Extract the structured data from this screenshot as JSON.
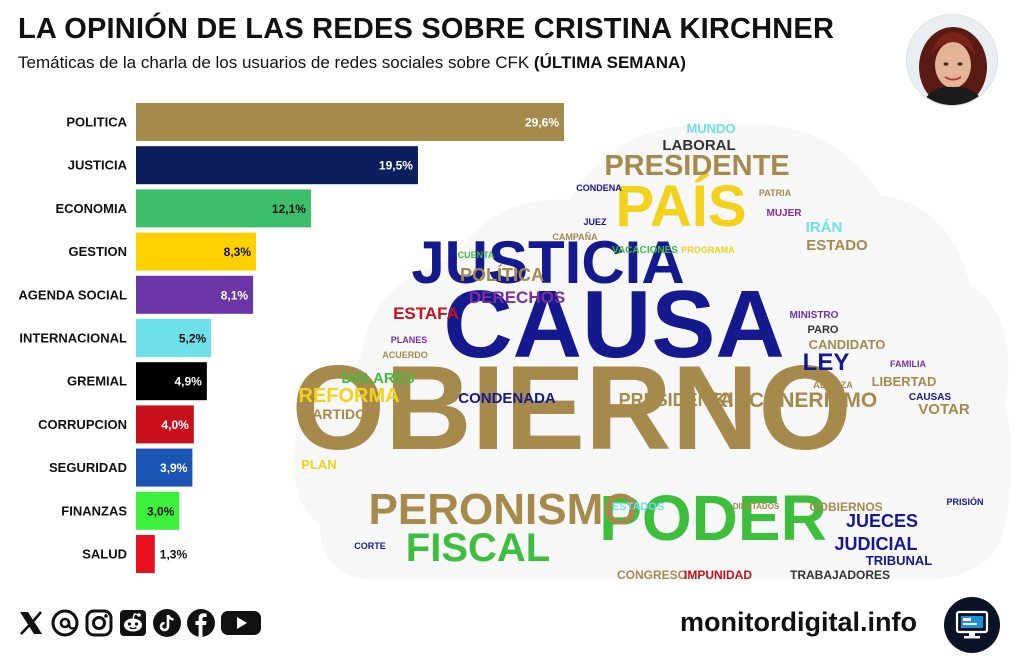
{
  "header": {
    "title": "LA OPINIÓN DE LAS REDES SOBRE CRISTINA KIRCHNER",
    "subtitle_prefix": "Temáticas de la charla de los usuarios de redes sociales sobre CFK ",
    "subtitle_emphasis": "(ÚLTIMA SEMANA)"
  },
  "chart_data": {
    "type": "bar",
    "orientation": "horizontal",
    "title": "LA OPINIÓN DE LAS REDES SOBRE CRISTINA KIRCHNER",
    "categories": [
      "POLITICA",
      "JUSTICIA",
      "ECONOMIA",
      "GESTION",
      "AGENDA SOCIAL",
      "INTERNACIONAL",
      "GREMIAL",
      "CORRUPCION",
      "SEGURIDAD",
      "FINANZAS",
      "SALUD"
    ],
    "values": [
      29.6,
      19.5,
      12.1,
      8.3,
      8.1,
      5.2,
      4.9,
      4.0,
      3.9,
      3.0,
      1.3
    ],
    "labels": [
      "29,6%",
      "19,5%",
      "12,1%",
      "8,3%",
      "8,1%",
      "5,2%",
      "4,9%",
      "4,0%",
      "3,9%",
      "3,0%",
      "1,3%"
    ],
    "colors": [
      "#A68A4B",
      "#0B1F5C",
      "#3DBE6A",
      "#FFD100",
      "#6B35A8",
      "#6EE0EA",
      "#000000",
      "#C8101C",
      "#1A55B4",
      "#3CF03C",
      "#E8101C"
    ],
    "label_colors": [
      "#ffffff",
      "#ffffff",
      "#111111",
      "#111111",
      "#ffffff",
      "#111111",
      "#ffffff",
      "#ffffff",
      "#ffffff",
      "#111111",
      "#111111"
    ],
    "label_position": [
      "inside",
      "inside",
      "inside",
      "inside",
      "inside",
      "inside",
      "inside",
      "inside",
      "inside",
      "inside",
      "outside"
    ],
    "xlim": [
      0,
      29.6
    ],
    "grid": false,
    "legend": "none"
  },
  "word_cloud": {
    "words": [
      {
        "text": "GOBIERNO",
        "color": "#A68A4B"
      },
      {
        "text": "CAUSA",
        "color": "#141A8E"
      },
      {
        "text": "JUSTICIA",
        "color": "#141A8E"
      },
      {
        "text": "PAÍS",
        "color": "#F2D21A"
      },
      {
        "text": "PODER",
        "color": "#3DBE3D"
      },
      {
        "text": "PRESIDENTE",
        "color": "#A68A4B"
      },
      {
        "text": "PERONISMO",
        "color": "#A68A4B"
      },
      {
        "text": "FISCAL",
        "color": "#3DBE3D"
      },
      {
        "text": "KIRCHNERISMO",
        "color": "#A68A4B"
      },
      {
        "text": "PRESIDENTA",
        "color": "#A68A4B"
      },
      {
        "text": "LEY",
        "color": "#141A8E"
      },
      {
        "text": "REFORMA",
        "color": "#F2D21A"
      },
      {
        "text": "POLÍTICA",
        "color": "#A68A4B"
      },
      {
        "text": "DERECHOS",
        "color": "#7B2E9E"
      },
      {
        "text": "ESTAFA",
        "color": "#C8101C"
      },
      {
        "text": "JUECES",
        "color": "#141A8E"
      },
      {
        "text": "JUDICIAL",
        "color": "#141A8E"
      },
      {
        "text": "CONDENADA",
        "color": "#141A8E"
      },
      {
        "text": "DÓLARES",
        "color": "#3DBE3D"
      },
      {
        "text": "LABORAL",
        "color": "#333333"
      },
      {
        "text": "MUNDO",
        "color": "#6EE0EA"
      },
      {
        "text": "IRÁN",
        "color": "#6EE0EA"
      },
      {
        "text": "ESTADO",
        "color": "#A68A4B"
      },
      {
        "text": "PARTIDO",
        "color": "#A68A4B"
      },
      {
        "text": "PLAN",
        "color": "#F2D21A"
      },
      {
        "text": "CANDIDATO",
        "color": "#A68A4B"
      },
      {
        "text": "LIBERTAD",
        "color": "#A68A4B"
      },
      {
        "text": "VOTAR",
        "color": "#A68A4B"
      },
      {
        "text": "TRIBUNAL",
        "color": "#141A8E"
      },
      {
        "text": "TRABAJADORES",
        "color": "#333333"
      },
      {
        "text": "CONGRESO",
        "color": "#A68A4B"
      },
      {
        "text": "IMPUNIDAD",
        "color": "#C8101C"
      },
      {
        "text": "GOBIERNOS",
        "color": "#A68A4B"
      },
      {
        "text": "PARO",
        "color": "#333333"
      },
      {
        "text": "MINISTRO",
        "color": "#6B35A8"
      },
      {
        "text": "CAUSAS",
        "color": "#141A8E"
      },
      {
        "text": "FAMILIA",
        "color": "#7B2E9E"
      },
      {
        "text": "ALIANZA",
        "color": "#A68A4B"
      },
      {
        "text": "MUJER",
        "color": "#7B2E9E"
      },
      {
        "text": "PATRIA",
        "color": "#A68A4B"
      },
      {
        "text": "CONDENA",
        "color": "#141A8E"
      },
      {
        "text": "JUEZ",
        "color": "#141A8E"
      },
      {
        "text": "CAMPAÑA",
        "color": "#A68A4B"
      },
      {
        "text": "VACACIONES",
        "color": "#3DBE3D"
      },
      {
        "text": "PROGRAMA",
        "color": "#F2D21A"
      },
      {
        "text": "CUENTA",
        "color": "#3DBE3D"
      },
      {
        "text": "PLANES",
        "color": "#7B2E9E"
      },
      {
        "text": "ACUERDO",
        "color": "#A68A4B"
      },
      {
        "text": "ESTADOS",
        "color": "#6EE0EA"
      },
      {
        "text": "DIPUTADOS",
        "color": "#A68A4B"
      },
      {
        "text": "PRISIÓN",
        "color": "#141A8E"
      },
      {
        "text": "CORTE",
        "color": "#141A8E"
      }
    ]
  },
  "footer": {
    "brand": "monitordigital.info",
    "social_icons": [
      "x-icon",
      "threads-icon",
      "instagram-icon",
      "reddit-icon",
      "tiktok-icon",
      "facebook-icon",
      "youtube-icon"
    ]
  }
}
